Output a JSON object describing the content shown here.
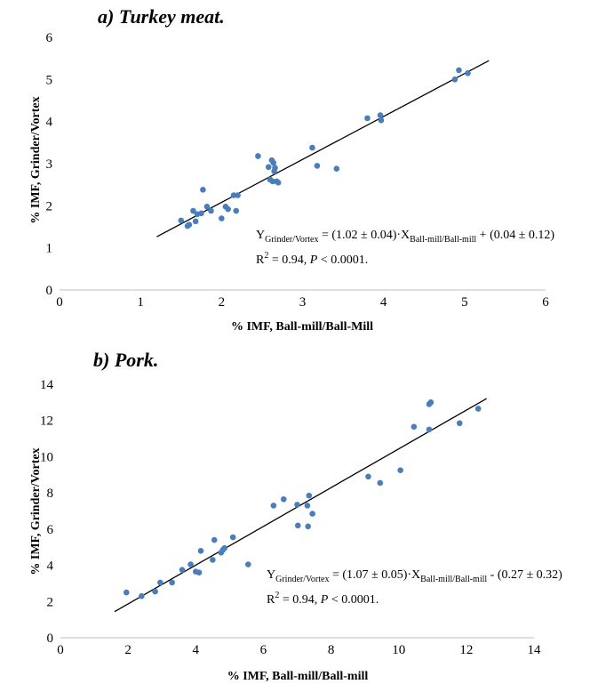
{
  "chart_data": [
    {
      "type": "scatter",
      "title": "a) Turkey meat.",
      "xlabel": "% IMF, Ball-mill/Ball-Mill",
      "ylabel": "% IMF, Grinder/Vortex",
      "xlim": [
        0,
        6
      ],
      "ylim": [
        0,
        6
      ],
      "xticks": [
        "0",
        "1",
        "2",
        "3",
        "4",
        "5",
        "6"
      ],
      "yticks": [
        "0",
        "1",
        "2",
        "3",
        "4",
        "5",
        "6"
      ],
      "grid": false,
      "point_color": "#4a7ebb",
      "trendline": {
        "slope": 1.02,
        "intercept": 0.04,
        "x_range": [
          1.2,
          5.3
        ]
      },
      "equation": {
        "lhs": "Y",
        "lhs_sub": "Grinder/Vortex",
        "mid": " = (1.02 ± 0.04)·X",
        "mid_sub": "Ball-mill/Ball-mill",
        "rhs": " + (0.04 ± 0.12)",
        "r2_prefix": "R",
        "r2_sup": "2",
        "r2_mid": " = 0.94, ",
        "r2_p": "P",
        "r2_suffix": " < 0.0001."
      },
      "points": [
        [
          1.5,
          1.65
        ],
        [
          1.58,
          1.52
        ],
        [
          1.6,
          1.55
        ],
        [
          1.65,
          1.88
        ],
        [
          1.68,
          1.63
        ],
        [
          1.7,
          1.8
        ],
        [
          1.75,
          1.82
        ],
        [
          1.77,
          2.38
        ],
        [
          1.82,
          1.98
        ],
        [
          1.87,
          1.88
        ],
        [
          2.0,
          1.7
        ],
        [
          2.05,
          1.98
        ],
        [
          2.08,
          1.92
        ],
        [
          2.15,
          2.25
        ],
        [
          2.18,
          1.88
        ],
        [
          2.2,
          2.25
        ],
        [
          2.45,
          3.18
        ],
        [
          2.58,
          2.92
        ],
        [
          2.6,
          2.62
        ],
        [
          2.62,
          3.08
        ],
        [
          2.63,
          2.58
        ],
        [
          2.64,
          3.02
        ],
        [
          2.65,
          2.82
        ],
        [
          2.66,
          2.9
        ],
        [
          2.68,
          2.58
        ],
        [
          2.7,
          2.55
        ],
        [
          3.12,
          3.38
        ],
        [
          3.18,
          2.95
        ],
        [
          3.42,
          2.88
        ],
        [
          3.8,
          4.08
        ],
        [
          3.96,
          4.15
        ],
        [
          3.97,
          4.03
        ],
        [
          4.88,
          5.0
        ],
        [
          4.93,
          5.22
        ],
        [
          5.04,
          5.15
        ]
      ]
    },
    {
      "type": "scatter",
      "title": "b) Pork.",
      "xlabel": "% IMF, Ball-mill/Ball-mill",
      "ylabel": "% IMF, Grinder/Vortex",
      "xlim": [
        0,
        14
      ],
      "ylim": [
        0,
        14
      ],
      "xticks": [
        "0",
        "2",
        "4",
        "6",
        "8",
        "10",
        "12",
        "14"
      ],
      "yticks": [
        "0",
        "2",
        "4",
        "6",
        "8",
        "10",
        "12",
        "14"
      ],
      "grid": false,
      "point_color": "#4a7ebb",
      "trendline": {
        "slope": 1.07,
        "intercept": -0.27,
        "x_range": [
          1.6,
          12.6
        ]
      },
      "equation": {
        "lhs": "Y",
        "lhs_sub": "Grinder/Vortex",
        "mid": " = (1.07 ± 0.05)·X",
        "mid_sub": "Ball-mill/Ball-mill",
        "rhs": " - (0.27 ± 0.32)",
        "r2_prefix": "R",
        "r2_sup": "2",
        "r2_mid": " = 0.94, ",
        "r2_p": "P",
        "r2_suffix": " < 0.0001."
      },
      "points": [
        [
          1.95,
          2.5
        ],
        [
          2.4,
          2.3
        ],
        [
          2.8,
          2.55
        ],
        [
          2.95,
          3.05
        ],
        [
          3.3,
          3.05
        ],
        [
          3.6,
          3.75
        ],
        [
          3.85,
          4.05
        ],
        [
          4.0,
          3.65
        ],
        [
          4.1,
          3.6
        ],
        [
          4.15,
          4.8
        ],
        [
          4.5,
          4.3
        ],
        [
          4.55,
          5.4
        ],
        [
          4.75,
          4.7
        ],
        [
          4.8,
          4.85
        ],
        [
          4.85,
          4.95
        ],
        [
          5.1,
          5.55
        ],
        [
          5.55,
          4.05
        ],
        [
          6.3,
          7.3
        ],
        [
          6.6,
          7.65
        ],
        [
          7.0,
          7.35
        ],
        [
          7.02,
          6.2
        ],
        [
          7.3,
          7.3
        ],
        [
          7.32,
          6.15
        ],
        [
          7.35,
          7.85
        ],
        [
          7.45,
          6.85
        ],
        [
          9.1,
          8.9
        ],
        [
          9.45,
          8.55
        ],
        [
          10.05,
          9.25
        ],
        [
          10.45,
          11.65
        ],
        [
          10.9,
          11.5
        ],
        [
          10.9,
          12.9
        ],
        [
          10.95,
          13.0
        ],
        [
          11.8,
          11.85
        ],
        [
          12.35,
          12.65
        ]
      ]
    }
  ]
}
